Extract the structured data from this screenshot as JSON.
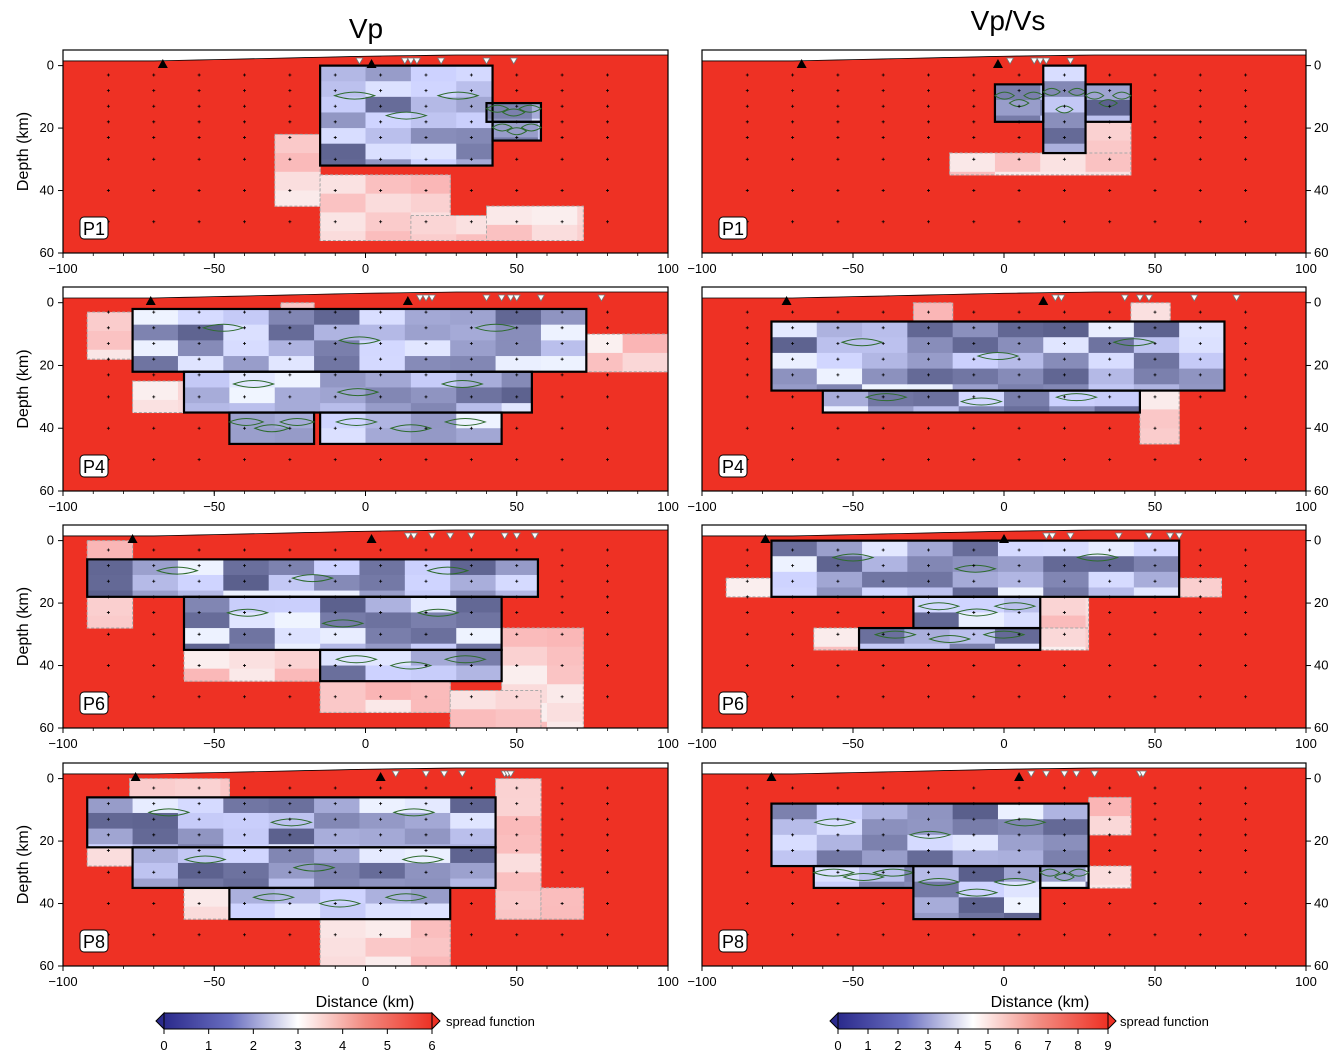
{
  "columns": [
    {
      "title": "Vp",
      "colorbar": {
        "label": "spread function",
        "ticks": [
          "0",
          "1",
          "2",
          "3",
          "4",
          "5",
          "6"
        ]
      }
    },
    {
      "title": "Vp/Vs",
      "colorbar": {
        "label": "spread function",
        "ticks": [
          "0",
          "1",
          "2",
          "3",
          "4",
          "5",
          "6",
          "7",
          "8",
          "9"
        ]
      }
    }
  ],
  "axes": {
    "xlabel": "Distance (km)",
    "ylabel": "Depth (km)"
  },
  "colors": {
    "background": "#ee3124",
    "low": "#2b2a8c",
    "mid": "#ffffff",
    "high": "#ee3124",
    "contour": "#2e6b2e"
  },
  "chart_data": [
    {
      "type": "heatmap",
      "column": "Vp",
      "panel": "P1",
      "xlim": [
        -100,
        100
      ],
      "ylim": [
        60,
        -5
      ],
      "xticks": [
        "-100",
        "-50",
        "0",
        "50",
        "100"
      ],
      "yticks": [
        "0",
        "20",
        "40",
        "60"
      ],
      "volcanoes_x": [
        -67,
        2
      ],
      "stations_x": [
        -2,
        13,
        15,
        17,
        25,
        40,
        49
      ],
      "resolved": [
        [
          -15,
          0,
          42,
          32
        ],
        [
          40,
          12,
          58,
          18
        ],
        [
          42,
          18,
          58,
          24
        ]
      ],
      "smeared": [
        [
          -30,
          22,
          -15,
          45
        ],
        [
          -15,
          35,
          28,
          56
        ],
        [
          15,
          48,
          42,
          56
        ],
        [
          40,
          45,
          72,
          56
        ]
      ]
    },
    {
      "type": "heatmap",
      "column": "Vp/Vs",
      "panel": "P1",
      "xlim": [
        -100,
        100
      ],
      "ylim": [
        60,
        -5
      ],
      "xticks": [
        "-100",
        "-50",
        "0",
        "50",
        "100"
      ],
      "yticks": [
        "0",
        "20",
        "40",
        "60"
      ],
      "volcanoes_x": [
        -67,
        -2
      ],
      "stations_x": [
        2,
        10,
        12,
        14,
        22
      ],
      "resolved": [
        [
          -3,
          6,
          13,
          18
        ],
        [
          13,
          0,
          27,
          28
        ],
        [
          27,
          6,
          42,
          18
        ]
      ],
      "smeared": [
        [
          -18,
          28,
          42,
          35
        ],
        [
          27,
          18,
          42,
          28
        ]
      ]
    },
    {
      "type": "heatmap",
      "column": "Vp",
      "panel": "P4",
      "xlim": [
        -100,
        100
      ],
      "ylim": [
        60,
        -5
      ],
      "xticks": [
        "-100",
        "-50",
        "0",
        "50",
        "100"
      ],
      "yticks": [
        "0",
        "20",
        "40",
        "60"
      ],
      "volcanoes_x": [
        -71,
        14
      ],
      "stations_x": [
        18,
        20,
        22,
        40,
        45,
        48,
        50,
        58,
        78
      ],
      "resolved": [
        [
          -77,
          2,
          73,
          22
        ],
        [
          -60,
          22,
          55,
          35
        ],
        [
          -45,
          35,
          -17,
          45
        ],
        [
          -15,
          35,
          45,
          45
        ]
      ],
      "smeared": [
        [
          -92,
          3,
          -77,
          18
        ],
        [
          -77,
          25,
          -60,
          35
        ],
        [
          55,
          10,
          100,
          22
        ],
        [
          -28,
          0,
          -17,
          10
        ]
      ]
    },
    {
      "type": "heatmap",
      "column": "Vp/Vs",
      "panel": "P4",
      "xlim": [
        -100,
        100
      ],
      "ylim": [
        60,
        -5
      ],
      "xticks": [
        "-100",
        "-50",
        "0",
        "50",
        "100"
      ],
      "yticks": [
        "0",
        "20",
        "40",
        "60"
      ],
      "volcanoes_x": [
        -72,
        13
      ],
      "stations_x": [
        17,
        19,
        40,
        45,
        48,
        63,
        77
      ],
      "resolved": [
        [
          -77,
          6,
          73,
          28
        ],
        [
          -60,
          28,
          45,
          35
        ]
      ],
      "smeared": [
        [
          45,
          28,
          58,
          45
        ],
        [
          -30,
          0,
          -17,
          6
        ],
        [
          42,
          0,
          55,
          12
        ]
      ]
    },
    {
      "type": "heatmap",
      "column": "Vp",
      "panel": "P6",
      "xlim": [
        -100,
        100
      ],
      "ylim": [
        60,
        -5
      ],
      "xticks": [
        "-100",
        "-50",
        "0",
        "50",
        "100"
      ],
      "yticks": [
        "0",
        "20",
        "40",
        "60"
      ],
      "volcanoes_x": [
        -77,
        2
      ],
      "stations_x": [
        14,
        16,
        22,
        28,
        35,
        46,
        50,
        56
      ],
      "resolved": [
        [
          -92,
          6,
          57,
          18
        ],
        [
          -60,
          18,
          45,
          35
        ],
        [
          -15,
          35,
          45,
          45
        ]
      ],
      "smeared": [
        [
          -92,
          18,
          -77,
          28
        ],
        [
          -60,
          35,
          -15,
          45
        ],
        [
          -15,
          45,
          28,
          55
        ],
        [
          45,
          28,
          72,
          60
        ],
        [
          28,
          48,
          58,
          60
        ],
        [
          -92,
          0,
          -77,
          6
        ]
      ]
    },
    {
      "type": "heatmap",
      "column": "Vp/Vs",
      "panel": "P6",
      "xlim": [
        -100,
        100
      ],
      "ylim": [
        60,
        -5
      ],
      "xticks": [
        "-100",
        "-50",
        "0",
        "50",
        "100"
      ],
      "yticks": [
        "0",
        "20",
        "40",
        "60"
      ],
      "volcanoes_x": [
        -79,
        0
      ],
      "stations_x": [
        14,
        16,
        22,
        38,
        48,
        55,
        55,
        58
      ],
      "resolved": [
        [
          -77,
          0,
          58,
          18
        ],
        [
          -30,
          18,
          12,
          28
        ],
        [
          -48,
          28,
          12,
          35
        ]
      ],
      "smeared": [
        [
          -92,
          12,
          -77,
          18
        ],
        [
          58,
          12,
          72,
          18
        ],
        [
          12,
          18,
          28,
          28
        ],
        [
          -63,
          28,
          -48,
          35
        ],
        [
          12,
          28,
          28,
          35
        ]
      ]
    },
    {
      "type": "heatmap",
      "column": "Vp",
      "panel": "P8",
      "xlim": [
        -100,
        100
      ],
      "ylim": [
        60,
        -5
      ],
      "xticks": [
        "-100",
        "-50",
        "0",
        "50",
        "100"
      ],
      "yticks": [
        "0",
        "20",
        "40",
        "60"
      ],
      "volcanoes_x": [
        -76,
        5
      ],
      "stations_x": [
        10,
        20,
        26,
        32,
        46,
        47,
        48
      ],
      "resolved": [
        [
          -92,
          6,
          43,
          22
        ],
        [
          -77,
          22,
          43,
          35
        ],
        [
          -45,
          35,
          28,
          45
        ]
      ],
      "smeared": [
        [
          43,
          0,
          58,
          45
        ],
        [
          -60,
          35,
          -45,
          45
        ],
        [
          -15,
          45,
          28,
          60
        ],
        [
          58,
          35,
          72,
          45
        ],
        [
          -92,
          22,
          -77,
          28
        ],
        [
          -78,
          0,
          -45,
          6
        ]
      ]
    },
    {
      "type": "heatmap",
      "column": "Vp/Vs",
      "panel": "P8",
      "xlim": [
        -100,
        100
      ],
      "ylim": [
        60,
        -5
      ],
      "xticks": [
        "-100",
        "-50",
        "0",
        "50",
        "100"
      ],
      "yticks": [
        "0",
        "20",
        "40",
        "60"
      ],
      "volcanoes_x": [
        -77,
        5
      ],
      "stations_x": [
        9,
        14,
        20,
        24,
        30,
        30,
        45,
        46
      ],
      "resolved": [
        [
          -77,
          8,
          28,
          28
        ],
        [
          -63,
          28,
          -30,
          35
        ],
        [
          -30,
          28,
          12,
          45
        ],
        [
          12,
          28,
          28,
          35
        ]
      ],
      "smeared": [
        [
          28,
          6,
          42,
          18
        ],
        [
          13,
          28,
          42,
          35
        ]
      ]
    }
  ]
}
